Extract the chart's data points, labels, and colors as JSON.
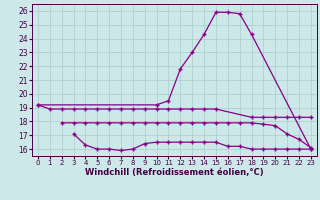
{
  "background_color": "#cce8e8",
  "grid_color": "#aacccc",
  "line_color": "#880088",
  "xlabel": "Windchill (Refroidissement éolien,°C)",
  "ylim": [
    15.5,
    26.5
  ],
  "xlim": [
    -0.5,
    23.5
  ],
  "yticks": [
    16,
    17,
    18,
    19,
    20,
    21,
    22,
    23,
    24,
    25,
    26
  ],
  "xticks": [
    0,
    1,
    2,
    3,
    4,
    5,
    6,
    7,
    8,
    9,
    10,
    11,
    12,
    13,
    14,
    15,
    16,
    17,
    18,
    19,
    20,
    21,
    22,
    23
  ],
  "main_x": [
    0,
    10,
    11,
    12,
    13,
    14,
    15,
    16,
    17,
    18,
    23
  ],
  "main_y": [
    19.2,
    19.2,
    19.5,
    21.8,
    23.0,
    24.3,
    25.9,
    25.9,
    25.8,
    24.3,
    16.0
  ],
  "upper_x": [
    0,
    1,
    2,
    3,
    4,
    5,
    6,
    7,
    8,
    9,
    10,
    11,
    12,
    13,
    14,
    15,
    18,
    19,
    20,
    21,
    22,
    23
  ],
  "upper_y": [
    19.2,
    18.9,
    18.9,
    18.9,
    18.9,
    18.9,
    18.9,
    18.9,
    18.9,
    18.9,
    18.9,
    18.9,
    18.9,
    18.9,
    18.9,
    18.9,
    18.3,
    18.3,
    18.3,
    18.3,
    18.3,
    18.3
  ],
  "mid_x": [
    2,
    3,
    4,
    5,
    6,
    7,
    8,
    9,
    10,
    11,
    12,
    13,
    14,
    15,
    16,
    17,
    18,
    19,
    20,
    21,
    22,
    23
  ],
  "mid_y": [
    17.9,
    17.9,
    17.9,
    17.9,
    17.9,
    17.9,
    17.9,
    17.9,
    17.9,
    17.9,
    17.9,
    17.9,
    17.9,
    17.9,
    17.9,
    17.9,
    17.9,
    17.8,
    17.7,
    17.1,
    16.7,
    16.1
  ],
  "lower_x": [
    3,
    4,
    5,
    6,
    7,
    8,
    9,
    10,
    11,
    12,
    13,
    14,
    15,
    16,
    17,
    18,
    19,
    20,
    21,
    22,
    23
  ],
  "lower_y": [
    17.1,
    16.3,
    16.0,
    16.0,
    15.9,
    16.0,
    16.4,
    16.5,
    16.5,
    16.5,
    16.5,
    16.5,
    16.5,
    16.2,
    16.2,
    16.0,
    16.0,
    16.0,
    16.0,
    16.0,
    16.0
  ]
}
